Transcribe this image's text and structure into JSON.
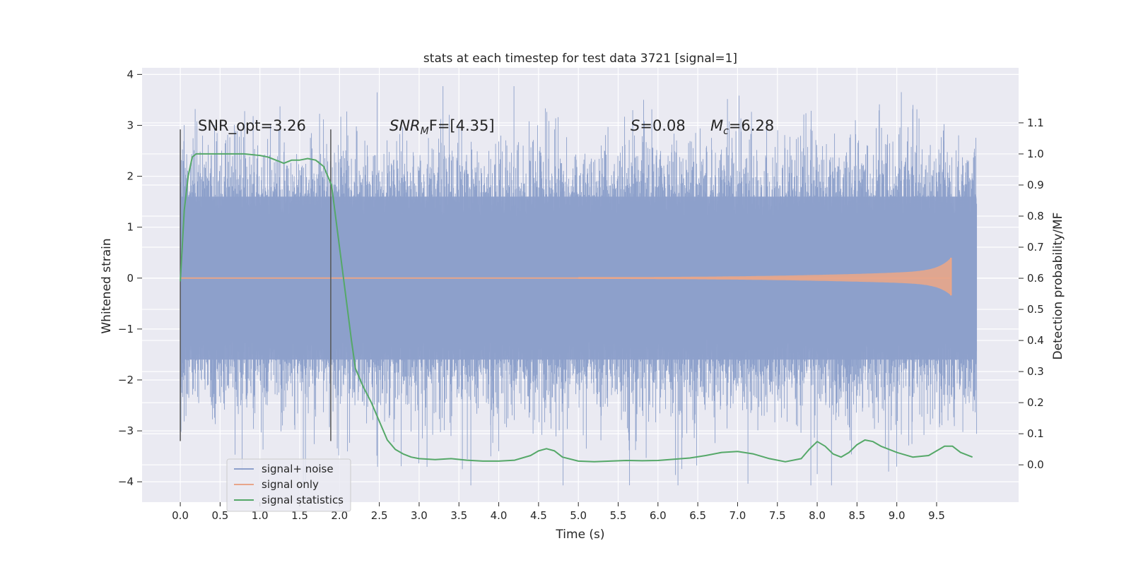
{
  "chart_data": {
    "type": "line",
    "title": "stats at each timestep for test data 3721 [signal=1]",
    "xlabel": "Time (s)",
    "ylabel": "Whitened strain",
    "y2label": "Detection probability/MF",
    "xlim": [
      -0.48,
      10.53
    ],
    "ylim": [
      -4.4,
      4.13
    ],
    "y2lim": [
      -0.12,
      1.277
    ],
    "x_ticks": [
      "0.0",
      "0.5",
      "1.0",
      "1.5",
      "2.0",
      "2.5",
      "3.0",
      "3.5",
      "4.0",
      "4.5",
      "5.0",
      "5.5",
      "6.0",
      "6.5",
      "7.0",
      "7.5",
      "8.0",
      "8.5",
      "9.0",
      "9.5"
    ],
    "y_ticks": [
      "-4",
      "-3",
      "-2",
      "-1",
      "0",
      "1",
      "2",
      "3",
      "4"
    ],
    "y2_ticks": [
      "0.0",
      "0.1",
      "0.2",
      "0.3",
      "0.4",
      "0.5",
      "0.6",
      "0.7",
      "0.8",
      "0.9",
      "1.0",
      "1.1"
    ],
    "grid": true,
    "legend_position": "lower-left",
    "annotations": {
      "snr_opt": "SNR_opt=3.26",
      "snr_mf_base": "SNR",
      "snr_mf_sub": "M",
      "snr_mf_rest": "F=[4.35]",
      "s_stat_sym": "S",
      "s_stat_val": "=0.08",
      "mc_sym": "M",
      "mc_sub": "c",
      "mc_val": "=6.28"
    },
    "vertical_lines_x": [
      0.0,
      1.89
    ],
    "vertical_lines_range": [
      -3.2,
      2.92
    ],
    "series": [
      {
        "name": "signal+ noise",
        "color": "#8da0cb",
        "t_range": [
          0.0,
          10.0
        ],
        "typical_range": [
          -1.6,
          1.6
        ],
        "max": 3.77,
        "min": -4.07
      },
      {
        "name": "signal only",
        "color": "#e8a68a",
        "t_range": [
          0.0,
          9.68
        ],
        "peak_amplitude": 0.4
      },
      {
        "name": "signal statistics",
        "color": "#55a868",
        "x": [
          0.0,
          0.05,
          0.1,
          0.15,
          0.2,
          0.3,
          0.5,
          0.8,
          1.0,
          1.1,
          1.2,
          1.3,
          1.4,
          1.5,
          1.6,
          1.7,
          1.8,
          1.9,
          2.0,
          2.1,
          2.15,
          2.2,
          2.3,
          2.4,
          2.5,
          2.6,
          2.7,
          2.8,
          2.9,
          3.0,
          3.2,
          3.4,
          3.6,
          3.8,
          4.0,
          4.2,
          4.4,
          4.5,
          4.6,
          4.7,
          4.8,
          5.0,
          5.2,
          5.4,
          5.6,
          5.8,
          6.0,
          6.2,
          6.4,
          6.6,
          6.8,
          7.0,
          7.2,
          7.4,
          7.6,
          7.8,
          7.9,
          8.0,
          8.1,
          8.2,
          8.3,
          8.4,
          8.5,
          8.6,
          8.7,
          8.8,
          9.0,
          9.2,
          9.4,
          9.5,
          9.6,
          9.7,
          9.8,
          9.95
        ],
        "values": [
          0.59,
          0.82,
          0.93,
          0.99,
          1.0,
          1.0,
          1.0,
          1.0,
          0.995,
          0.99,
          0.98,
          0.97,
          0.98,
          0.98,
          0.985,
          0.98,
          0.96,
          0.9,
          0.7,
          0.5,
          0.4,
          0.31,
          0.25,
          0.2,
          0.14,
          0.08,
          0.05,
          0.035,
          0.025,
          0.02,
          0.017,
          0.02,
          0.015,
          0.012,
          0.012,
          0.015,
          0.03,
          0.045,
          0.052,
          0.045,
          0.025,
          0.012,
          0.01,
          0.012,
          0.014,
          0.013,
          0.014,
          0.018,
          0.022,
          0.03,
          0.04,
          0.043,
          0.035,
          0.02,
          0.01,
          0.02,
          0.05,
          0.075,
          0.06,
          0.035,
          0.025,
          0.04,
          0.065,
          0.08,
          0.075,
          0.06,
          0.04,
          0.025,
          0.03,
          0.045,
          0.06,
          0.06,
          0.04,
          0.025
        ]
      }
    ]
  }
}
